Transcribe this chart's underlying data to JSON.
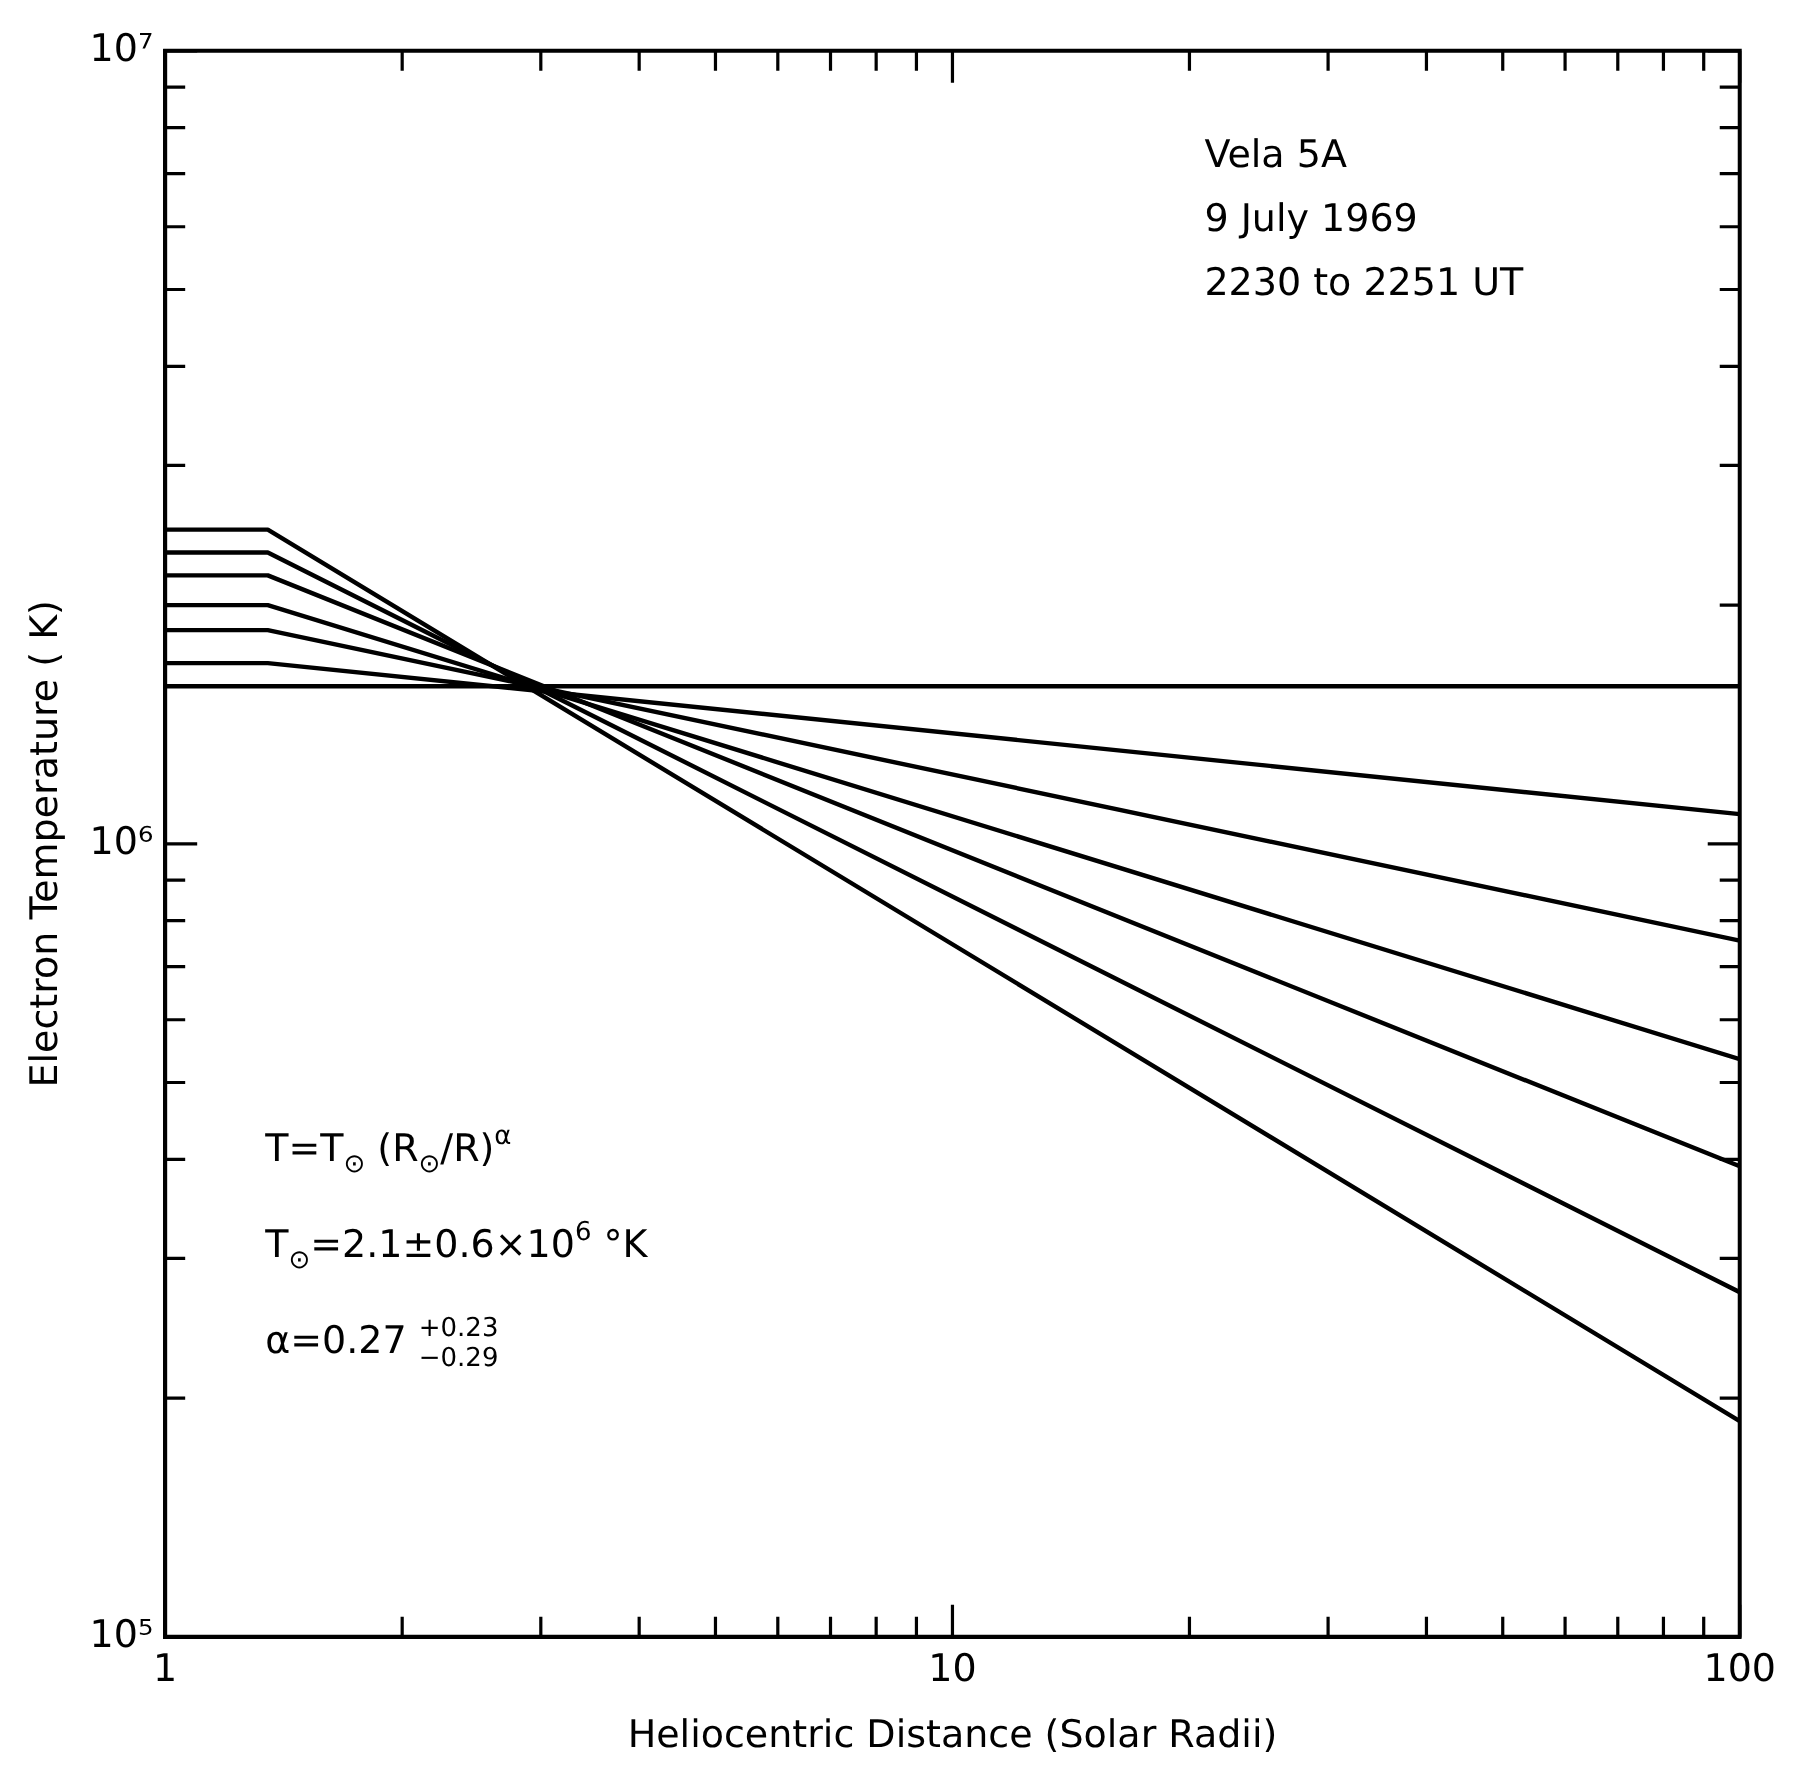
{
  "chart_data": {
    "type": "line",
    "xlabel": "Heliocentric Distance (Solar Radii)",
    "ylabel": "Electron Temperature ( K)",
    "log": "xy",
    "xlim": [
      1,
      100
    ],
    "ylim": [
      100000,
      10000000
    ],
    "xticks": [
      1,
      {
        "value": 2,
        "label": null
      },
      {
        "value": 3,
        "label": null
      },
      {
        "value": 4,
        "label": null
      },
      {
        "value": 5,
        "label": null
      },
      {
        "value": 6,
        "label": null
      },
      {
        "value": 7,
        "label": null
      },
      {
        "value": 8,
        "label": null
      },
      {
        "value": 9,
        "label": null
      },
      10,
      {
        "value": 20,
        "label": null
      },
      {
        "value": 30,
        "label": null
      },
      {
        "value": 40,
        "label": null
      },
      {
        "value": 50,
        "label": null
      },
      {
        "value": 60,
        "label": null
      },
      {
        "value": 70,
        "label": null
      },
      {
        "value": 80,
        "label": null
      },
      {
        "value": 90,
        "label": null
      },
      100
    ],
    "yticks": [
      {
        "value": 100000,
        "label": "10⁵"
      },
      {
        "value": 200000,
        "label": null
      },
      {
        "value": 300000,
        "label": null
      },
      {
        "value": 400000,
        "label": null
      },
      {
        "value": 500000,
        "label": null
      },
      {
        "value": 600000,
        "label": null
      },
      {
        "value": 700000,
        "label": null
      },
      {
        "value": 800000,
        "label": null
      },
      {
        "value": 900000,
        "label": null
      },
      {
        "value": 1000000,
        "label": "10⁶"
      },
      {
        "value": 2000000,
        "label": null
      },
      {
        "value": 3000000,
        "label": null
      },
      {
        "value": 4000000,
        "label": null
      },
      {
        "value": 5000000,
        "label": null
      },
      {
        "value": 6000000,
        "label": null
      },
      {
        "value": 7000000,
        "label": null
      },
      {
        "value": 8000000,
        "label": null
      },
      {
        "value": 9000000,
        "label": null
      },
      {
        "value": 10000000,
        "label": "10⁷"
      }
    ],
    "grid": false,
    "legend": false,
    "marker": "none",
    "line_style": "solid",
    "series": [
      {
        "color": "#000000",
        "x": [
          1,
          100
        ],
        "values": [
          1580000,
          1580000
        ]
      },
      {
        "color": "#000000",
        "x": [
          1,
          1.35,
          100
        ],
        "values": [
          1690000,
          1690000,
          1090000
        ]
      },
      {
        "color": "#000000",
        "x": [
          1,
          1.35,
          100
        ],
        "values": [
          1860000,
          1860000,
          755000
        ]
      },
      {
        "color": "#000000",
        "x": [
          1,
          1.35,
          100
        ],
        "values": [
          2000000,
          2000000,
          535000
        ]
      },
      {
        "color": "#000000",
        "x": [
          1,
          1.35,
          100
        ],
        "values": [
          2180000,
          2180000,
          392000
        ]
      },
      {
        "color": "#000000",
        "x": [
          1,
          1.35,
          100
        ],
        "values": [
          2330000,
          2330000,
          272000
        ]
      },
      {
        "color": "#000000",
        "x": [
          1,
          1.35,
          100
        ],
        "values": [
          2490000,
          2490000,
          187000
        ]
      }
    ],
    "annotations": [
      "Vela 5A",
      "9 July 1969",
      "2230 to 2251 UT",
      "T=T$_{⊙}$ (R$_{⊙}$/R)$^{α}$",
      "T$_{⊙}$=2.1±0.6×10$^{6}$ °K",
      "α=0.27 $^{+0.23}$$_{−0.29}$"
    ]
  }
}
